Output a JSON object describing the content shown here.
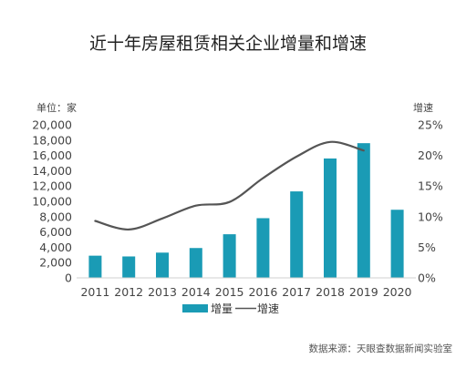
{
  "chart_data": {
    "type": "bar",
    "title": "近十年房屋租赁相关企业增量和增速",
    "left_axis_label": "单位：家",
    "right_axis_label": "增速",
    "categories": [
      "2011",
      "2012",
      "2013",
      "2014",
      "2015",
      "2016",
      "2017",
      "2018",
      "2019",
      "2020"
    ],
    "series": [
      {
        "name": "增量",
        "kind": "bar",
        "axis": "left",
        "color": "#1a9bb5",
        "values": [
          2900,
          2800,
          3300,
          3900,
          5700,
          7800,
          11300,
          15600,
          17600,
          8900
        ]
      },
      {
        "name": "增速",
        "kind": "line",
        "axis": "right",
        "color": "#555555",
        "values": [
          9.3,
          7.9,
          9.7,
          11.8,
          12.4,
          16.3,
          19.8,
          22.2,
          20.8,
          null
        ]
      }
    ],
    "left_ylim": [
      0,
      20000
    ],
    "left_ticks": [
      "0",
      "2,000",
      "4,000",
      "6,000",
      "8,000",
      "10,000",
      "12,000",
      "14,000",
      "16,000",
      "18,000",
      "20,000"
    ],
    "right_ylim": [
      0,
      25
    ],
    "right_ticks": [
      "0%",
      "5%",
      "10%",
      "15%",
      "20%",
      "25%"
    ],
    "grid": false,
    "legend_position": "bottom-center"
  },
  "legend": {
    "bar_label": "增量",
    "line_label": "增速"
  },
  "source": "数据来源：天眼查数据新闻实验室"
}
